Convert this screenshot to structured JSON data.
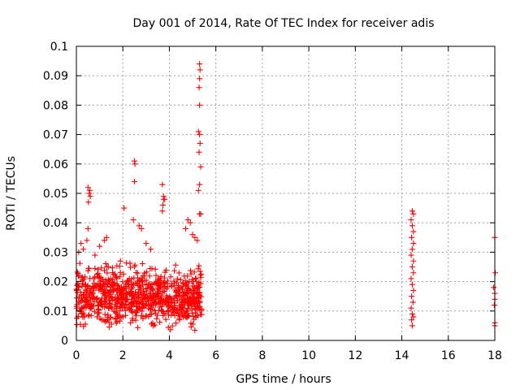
{
  "chart_data": {
    "type": "scatter",
    "title": "Day 001 of 2014, Rate Of TEC Index for receiver adis",
    "xlabel": "GPS time / hours",
    "ylabel": "ROTI / TECUs",
    "xlim": [
      0,
      18
    ],
    "ylim": [
      0,
      0.1
    ],
    "xticks": [
      0,
      2,
      4,
      6,
      8,
      10,
      12,
      14,
      16,
      18
    ],
    "xtick_labels": [
      "0",
      "2",
      "4",
      "6",
      "8",
      "10",
      "12",
      "14",
      "16",
      "18"
    ],
    "yticks": [
      0,
      0.01,
      0.02,
      0.03,
      0.04,
      0.05,
      0.06,
      0.07,
      0.08,
      0.09,
      0.1
    ],
    "ytick_labels": [
      "0",
      "0.01",
      "0.02",
      "0.03",
      "0.04",
      "0.05",
      "0.06",
      "0.07",
      "0.08",
      "0.09",
      "0.1"
    ],
    "grid": true,
    "marker": "+",
    "color": "#ff0000",
    "series": [
      {
        "name": "ROTI",
        "points": [
          [
            0.5,
            0.052
          ],
          [
            0.55,
            0.05
          ],
          [
            0.6,
            0.049
          ],
          [
            0.52,
            0.047
          ],
          [
            0.58,
            0.051
          ],
          [
            0.5,
            0.038
          ],
          [
            0.45,
            0.034
          ],
          [
            0.2,
            0.033
          ],
          [
            0.1,
            0.03
          ],
          [
            0.3,
            0.031
          ],
          [
            1.2,
            0.034
          ],
          [
            1.3,
            0.035
          ],
          [
            1.0,
            0.032
          ],
          [
            0.8,
            0.029
          ],
          [
            2.05,
            0.045
          ],
          [
            2.5,
            0.061
          ],
          [
            2.52,
            0.06
          ],
          [
            2.5,
            0.054
          ],
          [
            2.45,
            0.041
          ],
          [
            2.8,
            0.038
          ],
          [
            2.7,
            0.039
          ],
          [
            3.0,
            0.033
          ],
          [
            3.2,
            0.031
          ],
          [
            3.7,
            0.053
          ],
          [
            3.75,
            0.049
          ],
          [
            3.8,
            0.048
          ],
          [
            3.72,
            0.046
          ],
          [
            3.7,
            0.044
          ],
          [
            3.75,
            0.048
          ],
          [
            4.8,
            0.041
          ],
          [
            4.9,
            0.04
          ],
          [
            4.7,
            0.038
          ],
          [
            5.0,
            0.036
          ],
          [
            5.1,
            0.035
          ],
          [
            5.2,
            0.034
          ],
          [
            5.3,
            0.094
          ],
          [
            5.32,
            0.092
          ],
          [
            5.3,
            0.089
          ],
          [
            5.28,
            0.086
          ],
          [
            5.3,
            0.08
          ],
          [
            5.25,
            0.071
          ],
          [
            5.3,
            0.07
          ],
          [
            5.32,
            0.067
          ],
          [
            5.28,
            0.064
          ],
          [
            5.35,
            0.059
          ],
          [
            5.3,
            0.053
          ],
          [
            5.25,
            0.051
          ],
          [
            5.35,
            0.043
          ],
          [
            5.3,
            0.043
          ],
          [
            14.45,
            0.044
          ],
          [
            14.5,
            0.043
          ],
          [
            14.4,
            0.041
          ],
          [
            14.45,
            0.039
          ],
          [
            14.5,
            0.037
          ],
          [
            14.42,
            0.035
          ],
          [
            14.5,
            0.033
          ],
          [
            14.45,
            0.031
          ],
          [
            14.4,
            0.029
          ],
          [
            14.5,
            0.027
          ],
          [
            14.45,
            0.025
          ],
          [
            14.5,
            0.023
          ],
          [
            14.4,
            0.021
          ],
          [
            14.45,
            0.019
          ],
          [
            14.5,
            0.017
          ],
          [
            14.42,
            0.015
          ],
          [
            14.48,
            0.013
          ],
          [
            14.4,
            0.011
          ],
          [
            14.45,
            0.009
          ],
          [
            14.5,
            0.008
          ],
          [
            14.42,
            0.007
          ],
          [
            14.45,
            0.005
          ],
          [
            18.0,
            0.035
          ],
          [
            18.02,
            0.023
          ],
          [
            17.95,
            0.018
          ],
          [
            18.0,
            0.016
          ],
          [
            18.0,
            0.014
          ],
          [
            17.98,
            0.012
          ],
          [
            18.0,
            0.006
          ],
          [
            18.0,
            0.005
          ]
        ]
      }
    ],
    "dense_clusters": [
      {
        "x_range": [
          0,
          5.4
        ],
        "y_center": 0.015,
        "y_spread": 0.01,
        "y_range": [
          0.003,
          0.034
        ],
        "count": 900
      }
    ]
  }
}
